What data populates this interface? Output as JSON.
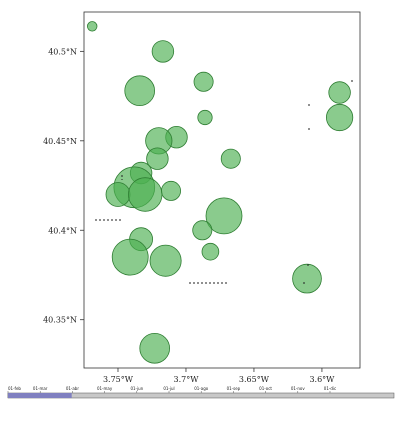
{
  "map": {
    "x_ticks": [
      {
        "lon": -3.75,
        "label": "3.75°W"
      },
      {
        "lon": -3.7,
        "label": "3.7°W"
      },
      {
        "lon": -3.65,
        "label": "3.65°W"
      },
      {
        "lon": -3.6,
        "label": "3.6°W"
      }
    ],
    "y_ticks": [
      {
        "lat": 40.5,
        "label": "40.5°N"
      },
      {
        "lat": 40.45,
        "label": "40.45°N"
      },
      {
        "lat": 40.4,
        "label": "40.4°N"
      },
      {
        "lat": 40.35,
        "label": "40.35°N"
      }
    ],
    "lon_range": [
      -3.775,
      -3.572
    ],
    "lat_range": [
      40.323,
      40.522
    ],
    "circle_color": "#4caf50",
    "circle_stroke": "#2e7d32",
    "circles": [
      {
        "lon": -3.769,
        "lat": 40.514,
        "r": 0.2
      },
      {
        "lon": -3.717,
        "lat": 40.5,
        "r": 0.45
      },
      {
        "lon": -3.687,
        "lat": 40.483,
        "r": 0.4
      },
      {
        "lon": -3.587,
        "lat": 40.477,
        "r": 0.45
      },
      {
        "lon": -3.686,
        "lat": 40.463,
        "r": 0.3
      },
      {
        "lon": -3.587,
        "lat": 40.463,
        "r": 0.55
      },
      {
        "lon": -3.734,
        "lat": 40.478,
        "r": 0.62
      },
      {
        "lon": -3.707,
        "lat": 40.452,
        "r": 0.45
      },
      {
        "lon": -3.72,
        "lat": 40.45,
        "r": 0.55
      },
      {
        "lon": -3.667,
        "lat": 40.44,
        "r": 0.4
      },
      {
        "lon": -3.721,
        "lat": 40.44,
        "r": 0.45
      },
      {
        "lon": -3.733,
        "lat": 40.432,
        "r": 0.45
      },
      {
        "lon": -3.738,
        "lat": 40.424,
        "r": 0.85
      },
      {
        "lon": -3.75,
        "lat": 40.42,
        "r": 0.5
      },
      {
        "lon": -3.711,
        "lat": 40.422,
        "r": 0.4
      },
      {
        "lon": -3.73,
        "lat": 40.42,
        "r": 0.7
      },
      {
        "lon": -3.672,
        "lat": 40.408,
        "r": 0.75
      },
      {
        "lon": -3.688,
        "lat": 40.4,
        "r": 0.4
      },
      {
        "lon": -3.733,
        "lat": 40.395,
        "r": 0.48
      },
      {
        "lon": -3.741,
        "lat": 40.385,
        "r": 0.75
      },
      {
        "lon": -3.715,
        "lat": 40.383,
        "r": 0.65
      },
      {
        "lon": -3.682,
        "lat": 40.388,
        "r": 0.35
      },
      {
        "lon": -3.611,
        "lat": 40.373,
        "r": 0.6
      },
      {
        "lon": -3.723,
        "lat": 40.334,
        "r": 0.62
      }
    ]
  },
  "timeline": {
    "months": [
      "01-feb",
      "01-mar",
      "01-abr",
      "01-may",
      "01-jun",
      "01-jul",
      "01-ago",
      "01-sep",
      "01-oct",
      "01-nov",
      "01-dic"
    ],
    "progress": 0.165,
    "fill_color": "#8080c0",
    "track_color": "#c8c8c8"
  }
}
